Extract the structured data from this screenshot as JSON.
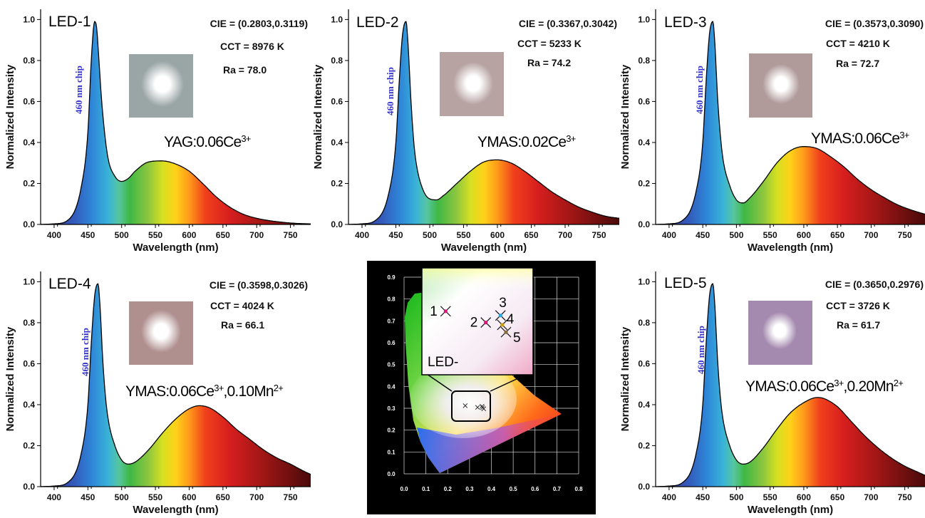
{
  "chart_data": [
    {
      "type": "area",
      "title": "LED-1",
      "xlabel": "Wavelength (nm)",
      "ylabel": "Normalized Intensity",
      "xlim": [
        380,
        780
      ],
      "ylim": [
        0,
        1.05
      ],
      "xticks": [
        "400",
        "450",
        "500",
        "550",
        "600",
        "650",
        "700",
        "750"
      ],
      "yticks": [
        "0.0",
        "0.2",
        "0.4",
        "0.6",
        "0.8",
        "1.0"
      ],
      "chip_label": "460 nm chip",
      "phosphor": {
        "main": "YAG:0.06Ce",
        "sup1": "3+",
        "mid": "",
        "sup2": ""
      },
      "cie": "CIE = (0.2803,0.3119)",
      "cct": "CCT = 8976 K",
      "ra": "Ra = 78.0",
      "photo_tint": "#9aa5a5",
      "series": [
        {
          "x": [
            380,
            400,
            420,
            440,
            450,
            455,
            460,
            463,
            466,
            470,
            475,
            480,
            490,
            500,
            510,
            520,
            540,
            560,
            580,
            600,
            620,
            640,
            660,
            680,
            700,
            720,
            740,
            760,
            780
          ],
          "y": [
            0.0,
            0.003,
            0.02,
            0.18,
            0.45,
            0.8,
            0.99,
            0.96,
            0.82,
            0.62,
            0.44,
            0.32,
            0.235,
            0.21,
            0.225,
            0.26,
            0.305,
            0.31,
            0.295,
            0.26,
            0.2,
            0.135,
            0.085,
            0.05,
            0.03,
            0.018,
            0.01,
            0.005,
            0.003
          ]
        }
      ]
    },
    {
      "type": "area",
      "title": "LED-2",
      "xlabel": "Wavelength (nm)",
      "ylabel": "Normalized Intensity",
      "xlim": [
        380,
        780
      ],
      "ylim": [
        0,
        1.05
      ],
      "xticks": [
        "400",
        "450",
        "500",
        "550",
        "600",
        "650",
        "700",
        "750"
      ],
      "yticks": [
        "0.0",
        "0.2",
        "0.4",
        "0.6",
        "0.8",
        "1.0"
      ],
      "chip_label": "460 nm chip",
      "phosphor": {
        "main": "YMAS:0.02Ce",
        "sup1": "3+",
        "mid": "",
        "sup2": ""
      },
      "cie": "CIE = (0.3367,0.3042)",
      "cct": "CCT = 5233 K",
      "ra": "Ra = 74.2",
      "photo_tint": "#b8a3a3",
      "series": [
        {
          "x": [
            380,
            400,
            420,
            440,
            450,
            455,
            460,
            465,
            468,
            472,
            476,
            480,
            490,
            500,
            510,
            520,
            540,
            560,
            580,
            600,
            620,
            640,
            660,
            680,
            700,
            720,
            740,
            760,
            780
          ],
          "y": [
            0.0,
            0.003,
            0.02,
            0.16,
            0.4,
            0.7,
            0.93,
            0.99,
            0.88,
            0.62,
            0.42,
            0.3,
            0.17,
            0.125,
            0.12,
            0.14,
            0.2,
            0.26,
            0.305,
            0.315,
            0.3,
            0.26,
            0.21,
            0.16,
            0.12,
            0.085,
            0.06,
            0.04,
            0.03
          ]
        }
      ]
    },
    {
      "type": "area",
      "title": "LED-3",
      "xlabel": "Wavelength (nm)",
      "ylabel": "Normalized Intensity",
      "xlim": [
        380,
        780
      ],
      "ylim": [
        0,
        1.05
      ],
      "xticks": [
        "400",
        "450",
        "500",
        "550",
        "600",
        "650",
        "700",
        "750"
      ],
      "yticks": [
        "0.0",
        "0.2",
        "0.4",
        "0.6",
        "0.8",
        "1.0"
      ],
      "chip_label": "460 nm chip",
      "phosphor": {
        "main": "YMAS:0.06Ce",
        "sup1": "3+",
        "mid": "",
        "sup2": ""
      },
      "cie": "CIE = (0.3573,0.3090)",
      "cct": "CCT = 4210 K",
      "ra": "Ra = 72.7",
      "photo_tint": "#b09a9a",
      "series": [
        {
          "x": [
            380,
            400,
            420,
            440,
            450,
            455,
            460,
            465,
            468,
            472,
            476,
            480,
            490,
            500,
            510,
            520,
            540,
            560,
            580,
            600,
            620,
            640,
            660,
            680,
            700,
            720,
            740,
            760,
            780
          ],
          "y": [
            0.0,
            0.003,
            0.02,
            0.16,
            0.4,
            0.7,
            0.93,
            0.99,
            0.88,
            0.62,
            0.44,
            0.32,
            0.19,
            0.12,
            0.105,
            0.13,
            0.21,
            0.3,
            0.36,
            0.38,
            0.37,
            0.33,
            0.28,
            0.22,
            0.17,
            0.13,
            0.095,
            0.07,
            0.05
          ]
        }
      ]
    },
    {
      "type": "area",
      "title": "LED-4",
      "xlabel": "Wavelength (nm)",
      "ylabel": "Normalized Intensity",
      "xlim": [
        380,
        780
      ],
      "ylim": [
        0,
        1.05
      ],
      "xticks": [
        "400",
        "450",
        "500",
        "550",
        "600",
        "650",
        "700",
        "750"
      ],
      "yticks": [
        "0.0",
        "0.2",
        "0.4",
        "0.6",
        "0.8",
        "1.0"
      ],
      "chip_label": "460 nm chip",
      "phosphor": {
        "main": "YMAS:0.06Ce",
        "sup1": "3+",
        "mid": ",0.10Mn",
        "sup2": "2+"
      },
      "cie": "CIE = (0.3598,0.3026)",
      "cct": "CCT = 4024 K",
      "ra": "Ra = 66.1",
      "photo_tint": "#b08f8f",
      "series": [
        {
          "x": [
            380,
            400,
            420,
            440,
            450,
            455,
            460,
            465,
            468,
            472,
            476,
            480,
            490,
            500,
            510,
            520,
            540,
            560,
            580,
            600,
            615,
            630,
            650,
            670,
            690,
            710,
            730,
            750,
            770,
            780
          ],
          "y": [
            0.0,
            0.003,
            0.02,
            0.16,
            0.4,
            0.7,
            0.93,
            0.99,
            0.88,
            0.62,
            0.44,
            0.33,
            0.2,
            0.13,
            0.11,
            0.12,
            0.18,
            0.26,
            0.33,
            0.38,
            0.395,
            0.385,
            0.34,
            0.28,
            0.23,
            0.18,
            0.14,
            0.11,
            0.075,
            0.06
          ]
        }
      ]
    },
    {
      "type": "area",
      "title": "LED-5",
      "xlabel": "Wavelength (nm)",
      "ylabel": "Normalized Intensity",
      "xlim": [
        380,
        780
      ],
      "ylim": [
        0,
        1.05
      ],
      "xticks": [
        "400",
        "450",
        "500",
        "550",
        "600",
        "650",
        "700",
        "750"
      ],
      "yticks": [
        "0.0",
        "0.2",
        "0.4",
        "0.6",
        "0.8",
        "1.0"
      ],
      "chip_label": "460 nm chip",
      "phosphor": {
        "main": "YMAS:0.06Ce",
        "sup1": "3+",
        "mid": ",0.20Mn",
        "sup2": "2+"
      },
      "cie": "CIE = (0.3650,0.2976)",
      "cct": "CCT = 3726 K",
      "ra": "Ra = 61.7",
      "photo_tint": "#a58ab0",
      "series": [
        {
          "x": [
            380,
            400,
            420,
            440,
            450,
            455,
            460,
            465,
            468,
            472,
            476,
            480,
            490,
            500,
            510,
            520,
            540,
            560,
            580,
            600,
            620,
            630,
            650,
            670,
            690,
            710,
            730,
            750,
            770,
            780
          ],
          "y": [
            0.0,
            0.003,
            0.02,
            0.16,
            0.4,
            0.7,
            0.93,
            0.99,
            0.88,
            0.62,
            0.44,
            0.33,
            0.2,
            0.13,
            0.11,
            0.12,
            0.19,
            0.28,
            0.36,
            0.41,
            0.435,
            0.43,
            0.39,
            0.32,
            0.25,
            0.19,
            0.14,
            0.1,
            0.07,
            0.055
          ]
        }
      ]
    },
    {
      "type": "scatter",
      "title": "",
      "xlim": [
        0.0,
        0.8
      ],
      "ylim": [
        0.0,
        0.9
      ],
      "xticks": [
        "0.0",
        "0.1",
        "0.2",
        "0.3",
        "0.4",
        "0.5",
        "0.6",
        "0.7",
        "0.8"
      ],
      "yticks": [
        "0.0",
        "0.1",
        "0.2",
        "0.3",
        "0.4",
        "0.5",
        "0.6",
        "0.7",
        "0.8",
        "0.9"
      ],
      "inset_label": "LED-",
      "points": [
        {
          "name": "1",
          "x": 0.2803,
          "y": 0.3119
        },
        {
          "name": "2",
          "x": 0.3367,
          "y": 0.3042
        },
        {
          "name": "3",
          "x": 0.3573,
          "y": 0.309
        },
        {
          "name": "4",
          "x": 0.3598,
          "y": 0.3026
        },
        {
          "name": "5",
          "x": 0.365,
          "y": 0.2976
        }
      ]
    }
  ]
}
